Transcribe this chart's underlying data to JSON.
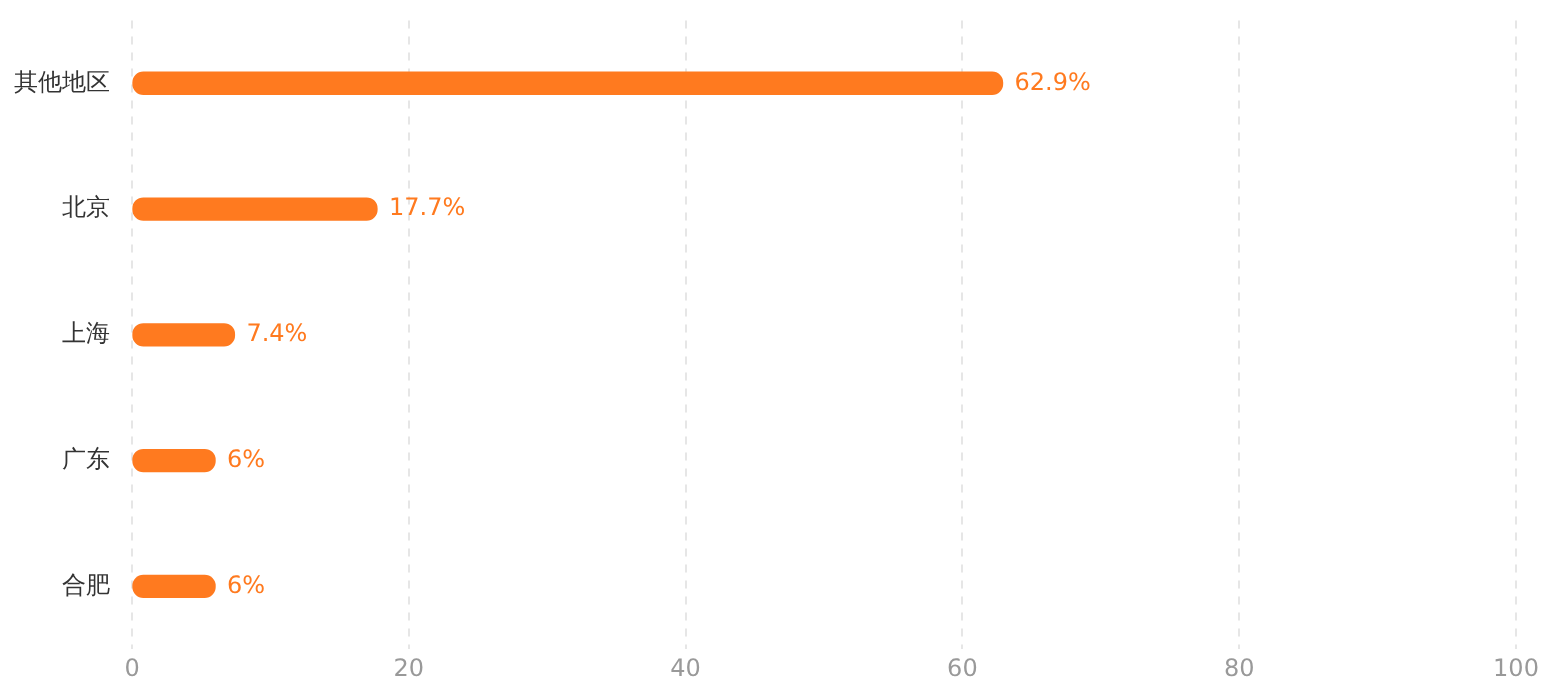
{
  "chart_data": {
    "type": "bar",
    "orientation": "horizontal",
    "categories": [
      "其他地区",
      "北京",
      "上海",
      "广东",
      "合肥"
    ],
    "values": [
      62.9,
      17.7,
      7.4,
      6,
      6
    ],
    "color": "#ff7a1f",
    "value_labels": [
      "62.9%",
      "17.7%",
      "7.4%",
      "6%",
      "6%"
    ],
    "xlim": [
      0,
      100
    ],
    "xticks": [
      0,
      20,
      40,
      60,
      80,
      100
    ],
    "grid": "x"
  }
}
